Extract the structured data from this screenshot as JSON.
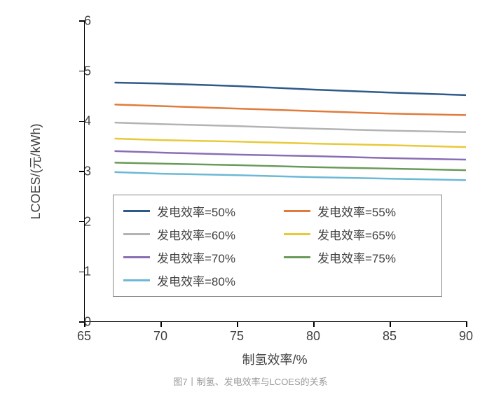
{
  "chart": {
    "type": "line",
    "xlabel": "制氢效率/%",
    "ylabel": "LCOES/(元/kWh)",
    "label_fontsize": 18,
    "xlim": [
      65,
      90
    ],
    "ylim": [
      0,
      6
    ],
    "xticks": [
      65,
      70,
      75,
      80,
      85,
      90
    ],
    "yticks": [
      0,
      1,
      2,
      3,
      4,
      5,
      6
    ],
    "background_color": "#ffffff",
    "axis_color": "#000000",
    "tick_label_color": "#404040",
    "line_width": 2.5,
    "x": [
      67,
      70,
      75,
      80,
      85,
      90
    ],
    "series": [
      {
        "label": "发电效率=50%",
        "color": "#2e5a8a",
        "y": [
          4.77,
          4.75,
          4.7,
          4.63,
          4.57,
          4.52
        ]
      },
      {
        "label": "发电效率=55%",
        "color": "#e07b3c",
        "y": [
          4.33,
          4.3,
          4.25,
          4.2,
          4.15,
          4.12
        ]
      },
      {
        "label": "发电效率=60%",
        "color": "#b3b3b3",
        "y": [
          3.97,
          3.94,
          3.9,
          3.85,
          3.81,
          3.78
        ]
      },
      {
        "label": "发电效率=65%",
        "color": "#e8c93a",
        "y": [
          3.65,
          3.62,
          3.59,
          3.55,
          3.52,
          3.48
        ]
      },
      {
        "label": "发电效率=70%",
        "color": "#8a6eb5",
        "y": [
          3.4,
          3.37,
          3.33,
          3.3,
          3.26,
          3.23
        ]
      },
      {
        "label": "发电效率=75%",
        "color": "#6a9a5a",
        "y": [
          3.17,
          3.15,
          3.12,
          3.08,
          3.05,
          3.02
        ]
      },
      {
        "label": "发电效率=80%",
        "color": "#6cb8d6",
        "y": [
          2.98,
          2.95,
          2.92,
          2.88,
          2.85,
          2.82
        ]
      }
    ],
    "legend_position": "inside-bottom-left",
    "legend_columns": 2,
    "legend_border_color": "#888888"
  },
  "caption": "图7丨制氢、发电效率与LCOES的关系"
}
